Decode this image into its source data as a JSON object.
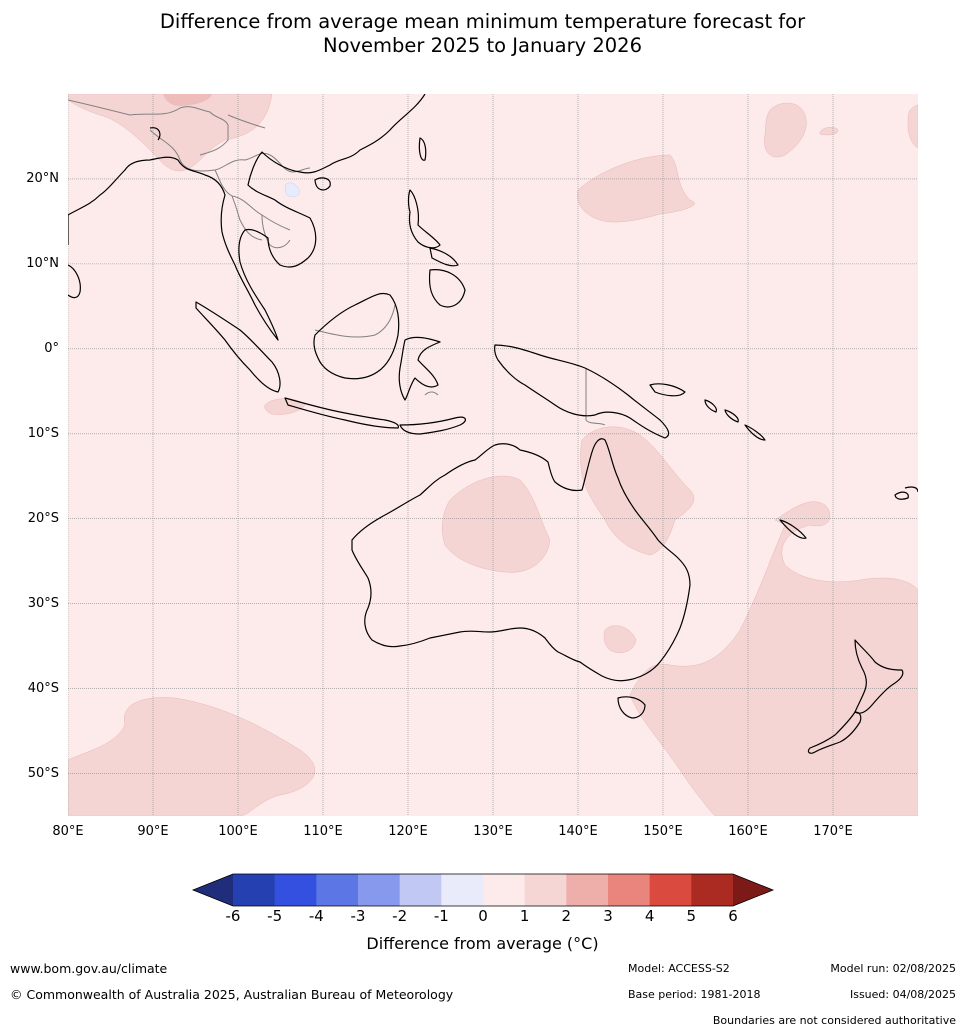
{
  "title_line1": "Difference from average mean minimum temperature forecast for",
  "title_line2": "November 2025 to January 2026",
  "map": {
    "lon_range": [
      80,
      180
    ],
    "lat_range": [
      -55,
      30
    ],
    "lat_ticks": [
      {
        "value": 20,
        "label": "20°N"
      },
      {
        "value": 10,
        "label": "10°N"
      },
      {
        "value": 0,
        "label": "0°"
      },
      {
        "value": -10,
        "label": "10°S"
      },
      {
        "value": -20,
        "label": "20°S"
      },
      {
        "value": -30,
        "label": "30°S"
      },
      {
        "value": -40,
        "label": "40°S"
      },
      {
        "value": -50,
        "label": "50°S"
      }
    ],
    "lon_ticks": [
      {
        "value": 80,
        "label": "80°E"
      },
      {
        "value": 90,
        "label": "90°E"
      },
      {
        "value": 100,
        "label": "100°E"
      },
      {
        "value": 110,
        "label": "110°E"
      },
      {
        "value": 120,
        "label": "120°E"
      },
      {
        "value": 130,
        "label": "130°E"
      },
      {
        "value": 140,
        "label": "140°E"
      },
      {
        "value": 150,
        "label": "150°E"
      },
      {
        "value": 160,
        "label": "160°E"
      },
      {
        "value": 170,
        "label": "170°E"
      }
    ],
    "background_color": "#fcebea",
    "warm_region_color": "#f5d5d4",
    "warmer_region_color": "#efbcbc",
    "cool_region_color": "#e6ecfb",
    "coastline_color": "#000000",
    "border_color": "#808080"
  },
  "colorbar": {
    "labels": [
      "-6",
      "-5",
      "-4",
      "-3",
      "-2",
      "-1",
      "0",
      "1",
      "2",
      "3",
      "4",
      "5",
      "6"
    ],
    "colors": [
      "#2540b0",
      "#3350e0",
      "#5c76e6",
      "#8799ec",
      "#c1c8f4",
      "#e9ebfb",
      "#fcebea",
      "#f6d6d5",
      "#eeaea9",
      "#e9857c",
      "#db4a3e",
      "#ab2a22"
    ],
    "under_color": "#1f2d7a",
    "over_color": "#7b1a17",
    "title": "Difference from average (°C)"
  },
  "footer": {
    "url": "www.bom.gov.au/climate",
    "copyright": "© Commonwealth of Australia 2025, Australian Bureau of Meteorology",
    "model": "Model: ACCESS-S2",
    "base_period": "Base period: 1981-2018",
    "model_run": "Model run: 02/08/2025",
    "issued": "Issued: 04/08/2025",
    "disclaimer": "Boundaries are not considered authoritative"
  }
}
